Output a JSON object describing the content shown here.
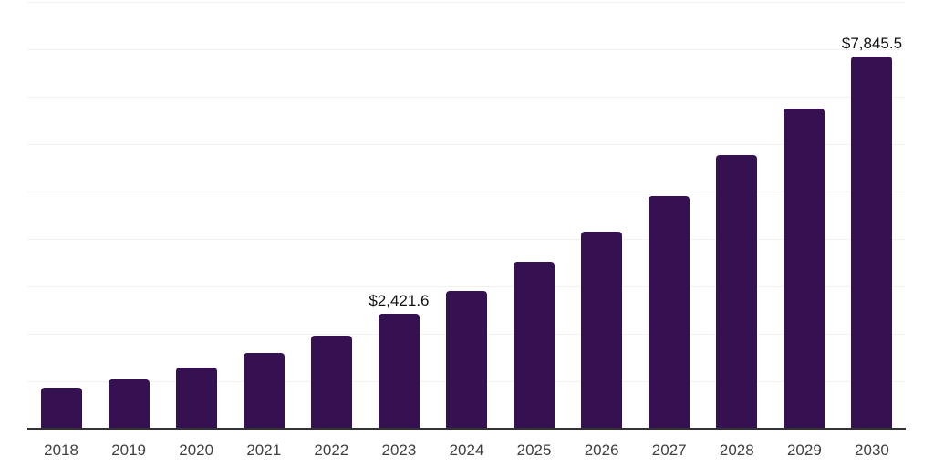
{
  "chart_data": {
    "type": "bar",
    "title": "",
    "xlabel": "",
    "ylabel": "",
    "categories": [
      "2018",
      "2019",
      "2020",
      "2021",
      "2022",
      "2023",
      "2024",
      "2025",
      "2026",
      "2027",
      "2028",
      "2029",
      "2030"
    ],
    "values": [
      865,
      1040,
      1290,
      1600,
      1965,
      2421.6,
      2910,
      3520,
      4150,
      4900,
      5760,
      6745,
      7845.5
    ],
    "value_precision_note": "only 2023 and 2030 are labeled on the chart; other values estimated from bar heights",
    "data_labels": [
      {
        "category": "2023",
        "text": "$2,421.6"
      },
      {
        "category": "2030",
        "text": "$7,845.5"
      }
    ],
    "ylim": [
      0,
      9000
    ],
    "gridline_interval": 1000,
    "grid": "horizontal",
    "legend": "none",
    "y_tick_labels_visible": false,
    "colors": {
      "bar": "#361151",
      "gridline": "#f2f2f2",
      "axis_line": "#333333",
      "data_label_text": "#111111",
      "tick_label_text": "#404040",
      "background": "#ffffff"
    }
  }
}
